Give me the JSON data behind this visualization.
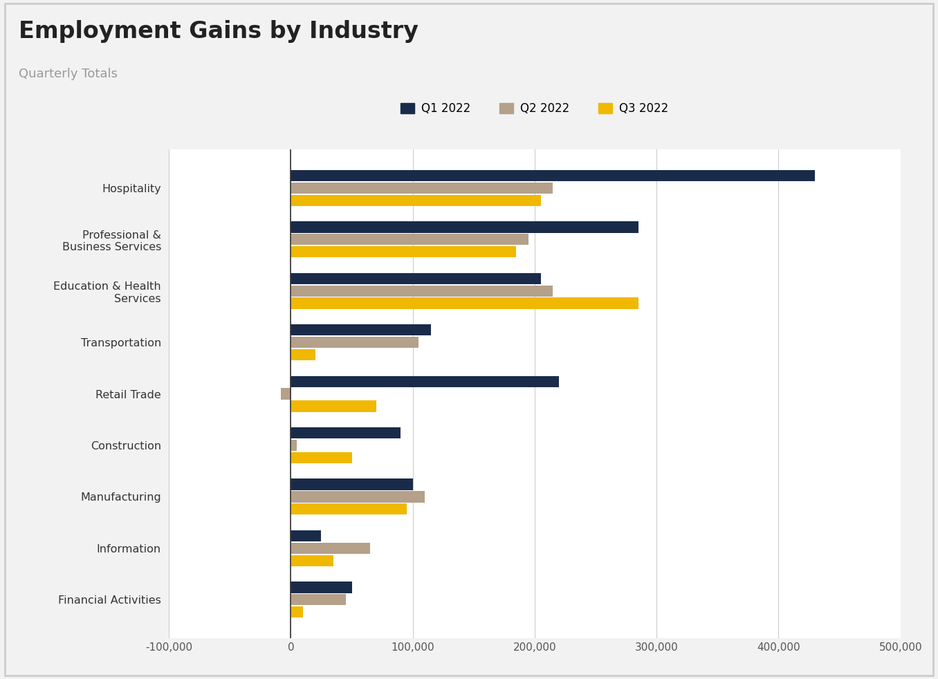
{
  "title": "Employment Gains by Industry",
  "subtitle": "Quarterly Totals",
  "categories": [
    "Hospitality",
    "Professional &\nBusiness Services",
    "Education & Health\nServices",
    "Transportation",
    "Retail Trade",
    "Construction",
    "Manufacturing",
    "Information",
    "Financial Activities"
  ],
  "quarters": [
    "Q1 2022",
    "Q2 2022",
    "Q3 2022"
  ],
  "colors": [
    "#1a2b4a",
    "#b5a08a",
    "#f0b800"
  ],
  "values": {
    "Q1 2022": [
      430000,
      285000,
      205000,
      115000,
      220000,
      90000,
      100000,
      25000,
      50000
    ],
    "Q2 2022": [
      215000,
      195000,
      215000,
      105000,
      -8000,
      5000,
      110000,
      65000,
      45000
    ],
    "Q3 2022": [
      205000,
      185000,
      285000,
      20000,
      70000,
      50000,
      95000,
      35000,
      10000
    ]
  },
  "xlim": [
    -100000,
    500000
  ],
  "xticks": [
    -100000,
    0,
    100000,
    200000,
    300000,
    400000,
    500000
  ],
  "xtick_labels": [
    "-100,000",
    "0",
    "100,000",
    "200,000",
    "300,000",
    "400,000",
    "500,000"
  ],
  "background_color": "#f2f2f2",
  "plot_background_color": "#ffffff",
  "title_fontsize": 24,
  "subtitle_fontsize": 13,
  "tick_fontsize": 11,
  "legend_fontsize": 12,
  "bar_height": 0.22,
  "bar_gap": 0.02,
  "grid_color": "#cccccc"
}
